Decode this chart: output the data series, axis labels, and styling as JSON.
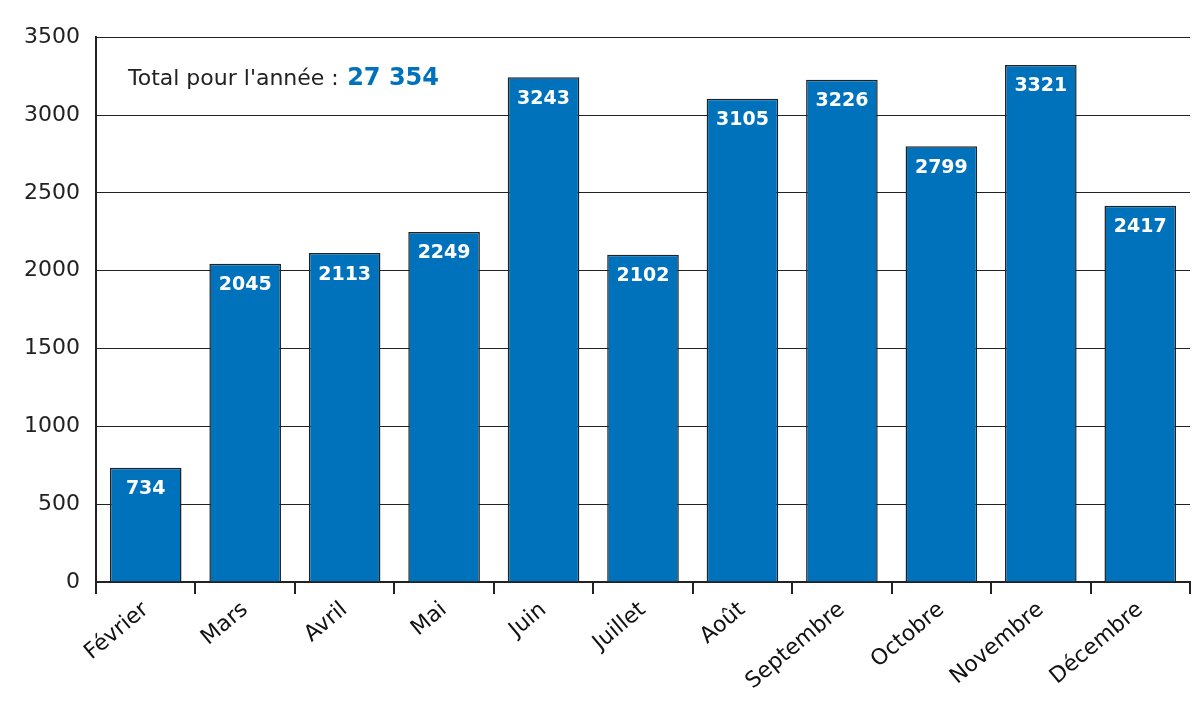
{
  "chart_data": {
    "type": "bar",
    "categories": [
      "Février",
      "Mars",
      "Avril",
      "Mai",
      "Juin",
      "Juillet",
      "Août",
      "Septembre",
      "Octobre",
      "Novembre",
      "Décembre"
    ],
    "values": [
      734,
      2045,
      2113,
      2249,
      3243,
      2102,
      3105,
      3226,
      2799,
      3321,
      2417
    ],
    "color": "#0072bc",
    "ylim": [
      0,
      3500
    ],
    "yticks": [
      0,
      500,
      1000,
      1500,
      2000,
      2500,
      3000,
      3500
    ],
    "grid": "y",
    "data_labels": true,
    "annotations": [
      "Total pour l'année : 27 354"
    ]
  }
}
